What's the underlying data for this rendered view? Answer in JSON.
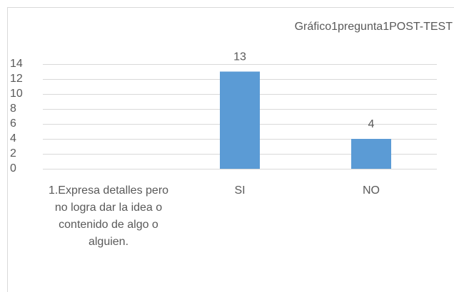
{
  "chart_data": {
    "type": "bar",
    "title": "Gráfico1pregunta1POST-TEST",
    "categories": [
      "1.Expresa detalles pero no logra dar la idea o contenido de algo o alguien.",
      "SI",
      "NO"
    ],
    "values": [
      null,
      13,
      4
    ],
    "color": "#5b9bd5",
    "ylim": [
      0,
      14
    ],
    "yticks": [
      0,
      2,
      4,
      6,
      8,
      10,
      12,
      14
    ],
    "grid": true
  }
}
